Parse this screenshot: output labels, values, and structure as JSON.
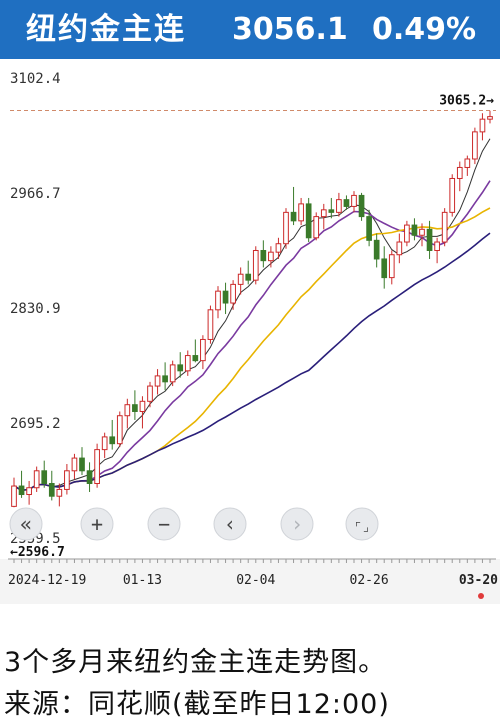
{
  "header": {
    "title": "纽约金主连",
    "price": "3056.1",
    "change_pct": "0.49%",
    "background_color": "#1f6fc1"
  },
  "chart_data": {
    "type": "candlestick",
    "ylim": [
      2559.5,
      3102.4
    ],
    "y_ticks": [
      {
        "value": 3102.4,
        "label": "3102.4"
      },
      {
        "value": 2966.7,
        "label": "2966.7"
      },
      {
        "value": 2830.9,
        "label": "2830.9"
      },
      {
        "value": 2695.2,
        "label": "2695.2"
      },
      {
        "value": 2559.5,
        "label": "2559.5"
      }
    ],
    "x_tick_labels": [
      "2024-12-19",
      "01-13",
      "02-04",
      "02-26",
      "03-20"
    ],
    "x_tick_indices": [
      0,
      17,
      32,
      47,
      63
    ],
    "high_marker": {
      "value": 3065.2,
      "label": "3065.2→"
    },
    "low_marker": {
      "value": 2596.7,
      "label": "←2596.7"
    },
    "up_color": "#cc2a2a",
    "down_color": "#3a7a2a",
    "candles": [
      {
        "o": 2598,
        "h": 2632,
        "l": 2597,
        "c": 2622
      },
      {
        "o": 2622,
        "h": 2640,
        "l": 2608,
        "c": 2612
      },
      {
        "o": 2612,
        "h": 2628,
        "l": 2600,
        "c": 2620
      },
      {
        "o": 2620,
        "h": 2645,
        "l": 2615,
        "c": 2640
      },
      {
        "o": 2640,
        "h": 2652,
        "l": 2620,
        "c": 2625
      },
      {
        "o": 2625,
        "h": 2640,
        "l": 2605,
        "c": 2610
      },
      {
        "o": 2610,
        "h": 2625,
        "l": 2598,
        "c": 2618
      },
      {
        "o": 2618,
        "h": 2648,
        "l": 2612,
        "c": 2640
      },
      {
        "o": 2640,
        "h": 2660,
        "l": 2630,
        "c": 2655
      },
      {
        "o": 2655,
        "h": 2668,
        "l": 2635,
        "c": 2640
      },
      {
        "o": 2640,
        "h": 2650,
        "l": 2615,
        "c": 2625
      },
      {
        "o": 2625,
        "h": 2672,
        "l": 2620,
        "c": 2665
      },
      {
        "o": 2665,
        "h": 2685,
        "l": 2655,
        "c": 2680
      },
      {
        "o": 2680,
        "h": 2700,
        "l": 2665,
        "c": 2672
      },
      {
        "o": 2672,
        "h": 2710,
        "l": 2668,
        "c": 2705
      },
      {
        "o": 2705,
        "h": 2725,
        "l": 2690,
        "c": 2718
      },
      {
        "o": 2718,
        "h": 2735,
        "l": 2700,
        "c": 2710
      },
      {
        "o": 2710,
        "h": 2728,
        "l": 2690,
        "c": 2722
      },
      {
        "o": 2722,
        "h": 2745,
        "l": 2715,
        "c": 2740
      },
      {
        "o": 2740,
        "h": 2760,
        "l": 2730,
        "c": 2752
      },
      {
        "o": 2752,
        "h": 2768,
        "l": 2735,
        "c": 2745
      },
      {
        "o": 2745,
        "h": 2770,
        "l": 2740,
        "c": 2765
      },
      {
        "o": 2765,
        "h": 2780,
        "l": 2750,
        "c": 2758
      },
      {
        "o": 2758,
        "h": 2782,
        "l": 2752,
        "c": 2776
      },
      {
        "o": 2776,
        "h": 2795,
        "l": 2768,
        "c": 2770
      },
      {
        "o": 2770,
        "h": 2800,
        "l": 2760,
        "c": 2795
      },
      {
        "o": 2795,
        "h": 2835,
        "l": 2790,
        "c": 2830
      },
      {
        "o": 2830,
        "h": 2858,
        "l": 2820,
        "c": 2852
      },
      {
        "o": 2852,
        "h": 2862,
        "l": 2825,
        "c": 2838
      },
      {
        "o": 2838,
        "h": 2865,
        "l": 2830,
        "c": 2860
      },
      {
        "o": 2860,
        "h": 2880,
        "l": 2848,
        "c": 2872
      },
      {
        "o": 2872,
        "h": 2888,
        "l": 2860,
        "c": 2865
      },
      {
        "o": 2865,
        "h": 2905,
        "l": 2860,
        "c": 2900
      },
      {
        "o": 2900,
        "h": 2912,
        "l": 2880,
        "c": 2888
      },
      {
        "o": 2888,
        "h": 2905,
        "l": 2880,
        "c": 2898
      },
      {
        "o": 2898,
        "h": 2915,
        "l": 2890,
        "c": 2908
      },
      {
        "o": 2908,
        "h": 2950,
        "l": 2902,
        "c": 2945
      },
      {
        "o": 2945,
        "h": 2975,
        "l": 2930,
        "c": 2935
      },
      {
        "o": 2935,
        "h": 2962,
        "l": 2930,
        "c": 2955
      },
      {
        "o": 2955,
        "h": 2962,
        "l": 2910,
        "c": 2915
      },
      {
        "o": 2915,
        "h": 2945,
        "l": 2912,
        "c": 2940
      },
      {
        "o": 2940,
        "h": 2955,
        "l": 2925,
        "c": 2948
      },
      {
        "o": 2948,
        "h": 2962,
        "l": 2938,
        "c": 2945
      },
      {
        "o": 2945,
        "h": 2968,
        "l": 2940,
        "c": 2960
      },
      {
        "o": 2960,
        "h": 2965,
        "l": 2948,
        "c": 2952
      },
      {
        "o": 2952,
        "h": 2970,
        "l": 2945,
        "c": 2965
      },
      {
        "o": 2965,
        "h": 2968,
        "l": 2935,
        "c": 2940
      },
      {
        "o": 2940,
        "h": 2948,
        "l": 2905,
        "c": 2912
      },
      {
        "o": 2912,
        "h": 2920,
        "l": 2880,
        "c": 2890
      },
      {
        "o": 2890,
        "h": 2905,
        "l": 2855,
        "c": 2868
      },
      {
        "o": 2868,
        "h": 2900,
        "l": 2860,
        "c": 2895
      },
      {
        "o": 2895,
        "h": 2920,
        "l": 2885,
        "c": 2910
      },
      {
        "o": 2910,
        "h": 2935,
        "l": 2905,
        "c": 2930
      },
      {
        "o": 2930,
        "h": 2938,
        "l": 2912,
        "c": 2918
      },
      {
        "o": 2918,
        "h": 2932,
        "l": 2905,
        "c": 2925
      },
      {
        "o": 2925,
        "h": 2935,
        "l": 2890,
        "c": 2900
      },
      {
        "o": 2900,
        "h": 2915,
        "l": 2885,
        "c": 2910
      },
      {
        "o": 2910,
        "h": 2950,
        "l": 2905,
        "c": 2945
      },
      {
        "o": 2945,
        "h": 2990,
        "l": 2940,
        "c": 2985
      },
      {
        "o": 2985,
        "h": 3005,
        "l": 2970,
        "c": 2998
      },
      {
        "o": 2998,
        "h": 3012,
        "l": 2988,
        "c": 3008
      },
      {
        "o": 3008,
        "h": 3045,
        "l": 3002,
        "c": 3040
      },
      {
        "o": 3040,
        "h": 3062,
        "l": 3030,
        "c": 3055
      },
      {
        "o": 3055,
        "h": 3065,
        "l": 3050,
        "c": 3058
      }
    ],
    "ma_colors": [
      "#333333",
      "#7a3aa0",
      "#e8b400",
      "#2a1f7a"
    ]
  },
  "controls": [
    {
      "name": "scroll-left-button",
      "icon": "double-chevron-left-icon",
      "glyph": "«"
    },
    {
      "name": "zoom-in-button",
      "icon": "plus-icon",
      "glyph": "+"
    },
    {
      "name": "zoom-out-button",
      "icon": "minus-icon",
      "glyph": "−"
    },
    {
      "name": "pan-left-button",
      "icon": "chevron-left-icon",
      "glyph": "‹"
    },
    {
      "name": "pan-right-button",
      "icon": "chevron-right-icon",
      "glyph": "›"
    },
    {
      "name": "reset-view-button",
      "icon": "corner-brackets-icon",
      "glyph": "⌜⌟"
    }
  ],
  "caption": {
    "line1": "3个多月来纽约金主连走势图。",
    "line2": "来源：同花顺(截至昨日12:00)"
  }
}
